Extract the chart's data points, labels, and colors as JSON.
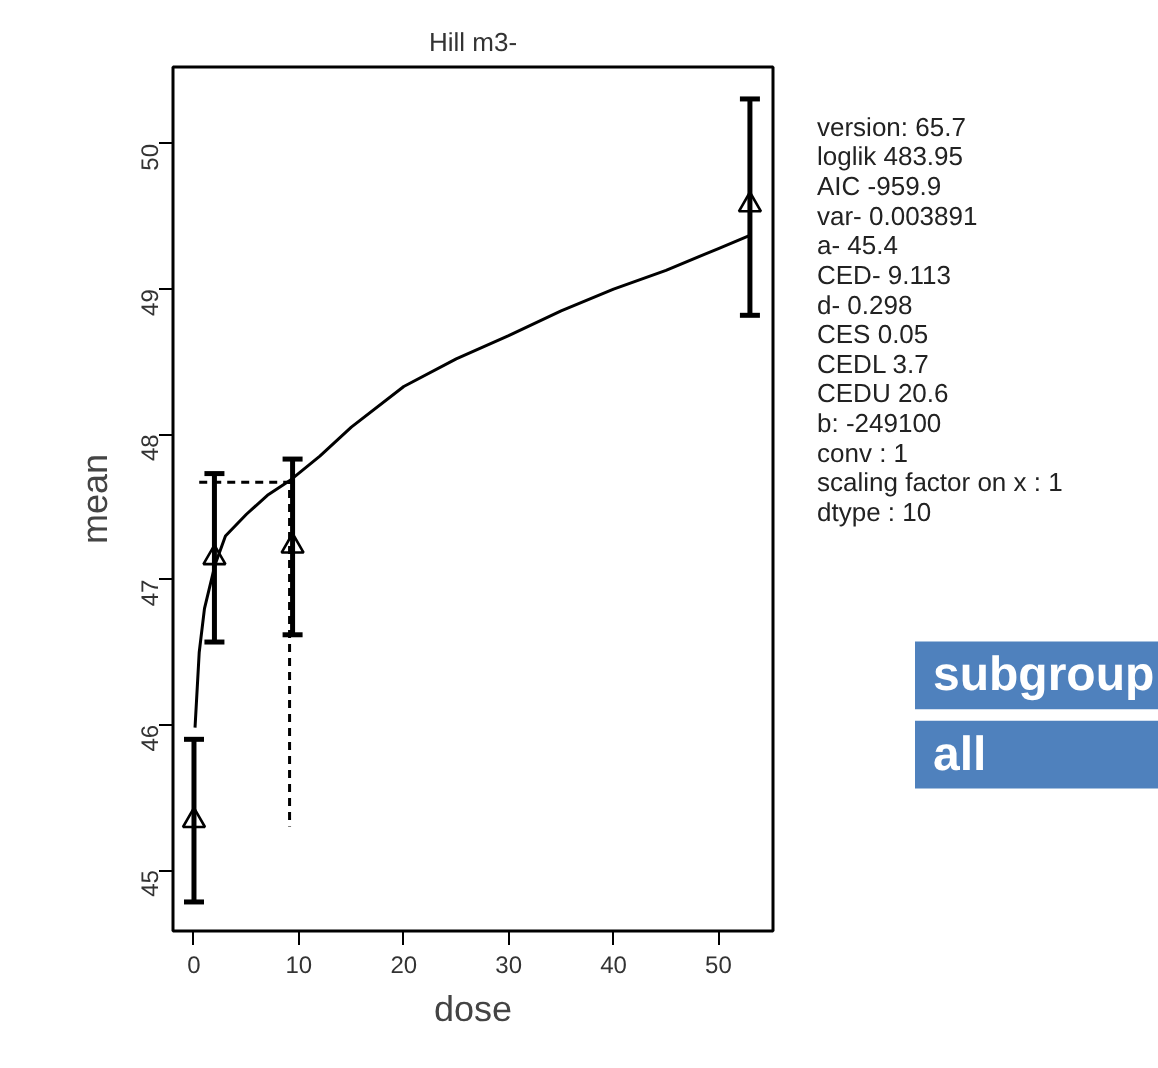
{
  "chart_data": {
    "type": "scatter",
    "title": "Hill m3-",
    "xlabel": "dose",
    "ylabel": "mean",
    "xlim": [
      -2,
      55.2
    ],
    "ylim": [
      44.58,
      50.53
    ],
    "xticks": [
      0,
      10,
      20,
      30,
      40,
      50
    ],
    "yticks": [
      45,
      46,
      47,
      48,
      49,
      50
    ],
    "grid": false,
    "series": [
      {
        "color": "#000000",
        "marker": "triangle",
        "x": [
          0,
          1.95,
          9.4,
          53
        ],
        "values": [
          45.34,
          47.15,
          47.23,
          49.58
        ],
        "errors": [
          [
            44.78,
            45.9
          ],
          [
            46.57,
            47.73
          ],
          [
            46.62,
            47.83
          ],
          [
            48.82,
            50.31
          ]
        ]
      },
      {
        "type": "line",
        "color": "#000000",
        "marker": "none",
        "line_style": "solid",
        "x": [
          0.1,
          0.5,
          1,
          2,
          3,
          5,
          7,
          9.1,
          12,
          15,
          20,
          25,
          30,
          35,
          40,
          45,
          50,
          53
        ],
        "values": [
          45.98,
          46.5,
          46.8,
          47.1,
          47.3,
          47.45,
          47.58,
          47.68,
          47.85,
          48.05,
          48.33,
          48.52,
          48.68,
          48.85,
          49.0,
          49.13,
          49.28,
          49.37
        ]
      },
      {
        "type": "line",
        "color": "#000000",
        "marker": "none",
        "line_style": "dashed",
        "x": [
          0.5,
          9.113,
          9.113
        ],
        "values": [
          47.67,
          47.67,
          45.3
        ]
      }
    ],
    "annotations": [
      "version: 65.7",
      "loglik    483.95",
      "AIC    -959.9",
      "var-    0.003891",
      "a-    45.4",
      "CED-    9.113",
      "d-    0.298",
      "CES    0.05",
      "CEDL    3.7",
      "CEDU    20.6",
      "b:  -249100",
      "conv :  1",
      "scaling factor on x :  1",
      "dtype :  10",
      "subgroup",
      "all"
    ]
  }
}
